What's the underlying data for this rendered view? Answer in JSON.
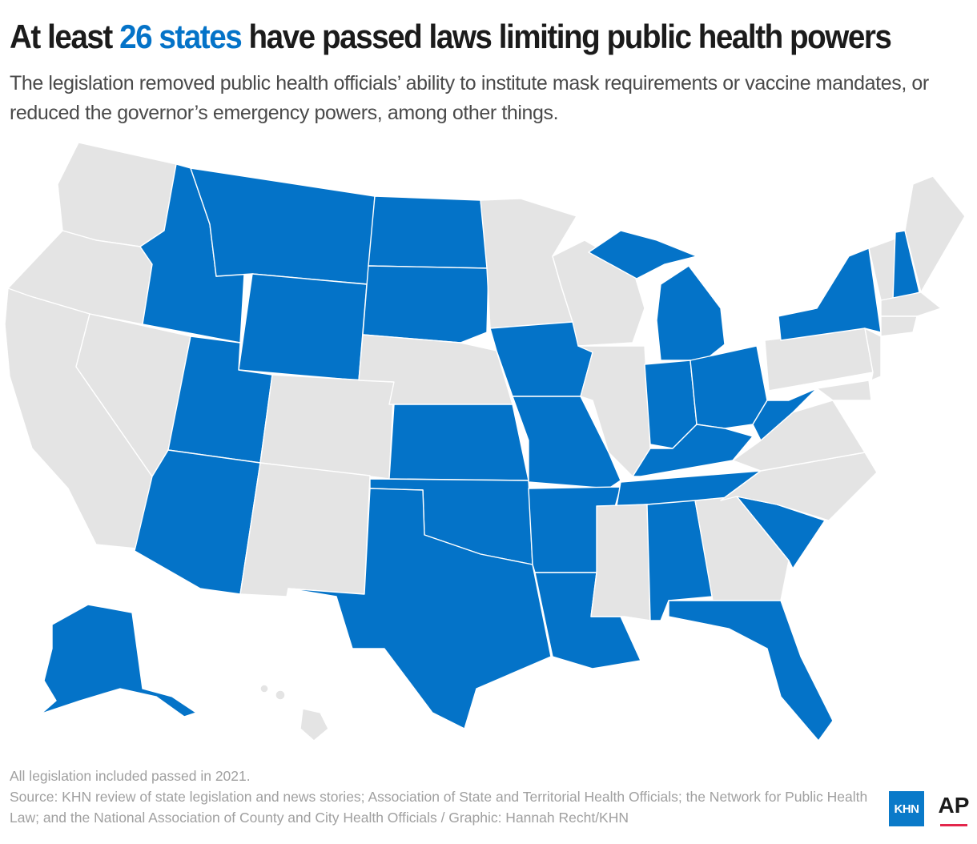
{
  "header": {
    "title_prefix": "At least ",
    "title_highlight": "26 states",
    "title_suffix": " have passed laws limiting public health powers",
    "subtitle": "The legislation removed public health officials’ ability to institute mask requirements or vaccine mandates, or reduced the governor’s emergency powers, among other things."
  },
  "colors": {
    "passed": "#0473c8",
    "not_passed": "#e4e4e4",
    "border": "#ffffff"
  },
  "map": {
    "states_passed": [
      "Alaska",
      "Arizona",
      "Idaho",
      "Montana",
      "Utah",
      "Wyoming",
      "North Dakota",
      "South Dakota",
      "Kansas",
      "Oklahoma",
      "Texas",
      "Iowa",
      "Missouri",
      "Arkansas",
      "Louisiana",
      "Indiana",
      "Ohio",
      "Michigan",
      "Kentucky",
      "Tennessee",
      "Alabama",
      "Florida",
      "South Carolina",
      "West Virginia",
      "New York",
      "New Hampshire"
    ],
    "states_not_passed": [
      "Washington",
      "Oregon",
      "California",
      "Nevada",
      "Colorado",
      "New Mexico",
      "Hawaii",
      "Nebraska",
      "Minnesota",
      "Wisconsin",
      "Illinois",
      "Mississippi",
      "Georgia",
      "North Carolina",
      "Virginia",
      "Pennsylvania",
      "New Jersey",
      "Delaware",
      "Maryland",
      "Vermont",
      "Maine",
      "Massachusetts",
      "Connecticut",
      "Rhode Island"
    ]
  },
  "footer": {
    "note": "All legislation included passed in 2021.",
    "source": "Source: KHN review of state legislation and news stories; Association of State and Territorial Health Officials; the Network for Public Health Law; and the National Association of County and City Health Officials / Graphic: Hannah Recht/KHN"
  },
  "logos": {
    "khn": "KHN",
    "ap": "AP"
  }
}
